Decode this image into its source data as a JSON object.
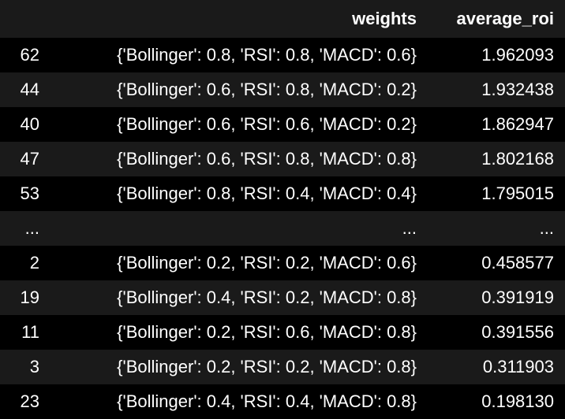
{
  "table": {
    "columns": {
      "index": "",
      "weights": "weights",
      "average_roi": "average_roi"
    },
    "rows": [
      {
        "index": "62",
        "weights": "{'Bollinger': 0.8, 'RSI': 0.8, 'MACD': 0.6}",
        "average_roi": "1.962093"
      },
      {
        "index": "44",
        "weights": "{'Bollinger': 0.6, 'RSI': 0.8, 'MACD': 0.2}",
        "average_roi": "1.932438"
      },
      {
        "index": "40",
        "weights": "{'Bollinger': 0.6, 'RSI': 0.6, 'MACD': 0.2}",
        "average_roi": "1.862947"
      },
      {
        "index": "47",
        "weights": "{'Bollinger': 0.6, 'RSI': 0.8, 'MACD': 0.8}",
        "average_roi": "1.802168"
      },
      {
        "index": "53",
        "weights": "{'Bollinger': 0.8, 'RSI': 0.4, 'MACD': 0.4}",
        "average_roi": "1.795015"
      },
      {
        "index": "...",
        "weights": "...",
        "average_roi": "..."
      },
      {
        "index": "2",
        "weights": "{'Bollinger': 0.2, 'RSI': 0.2, 'MACD': 0.6}",
        "average_roi": "0.458577"
      },
      {
        "index": "19",
        "weights": "{'Bollinger': 0.4, 'RSI': 0.2, 'MACD': 0.8}",
        "average_roi": "0.391919"
      },
      {
        "index": "11",
        "weights": "{'Bollinger': 0.2, 'RSI': 0.6, 'MACD': 0.8}",
        "average_roi": "0.391556"
      },
      {
        "index": "3",
        "weights": "{'Bollinger': 0.2, 'RSI': 0.2, 'MACD': 0.8}",
        "average_roi": "0.311903"
      },
      {
        "index": "23",
        "weights": "{'Bollinger': 0.4, 'RSI': 0.4, 'MACD': 0.8}",
        "average_roi": "0.198130"
      }
    ]
  },
  "colors": {
    "background": "#000000",
    "stripe": "#1a1a1a",
    "text": "#ffffff"
  }
}
